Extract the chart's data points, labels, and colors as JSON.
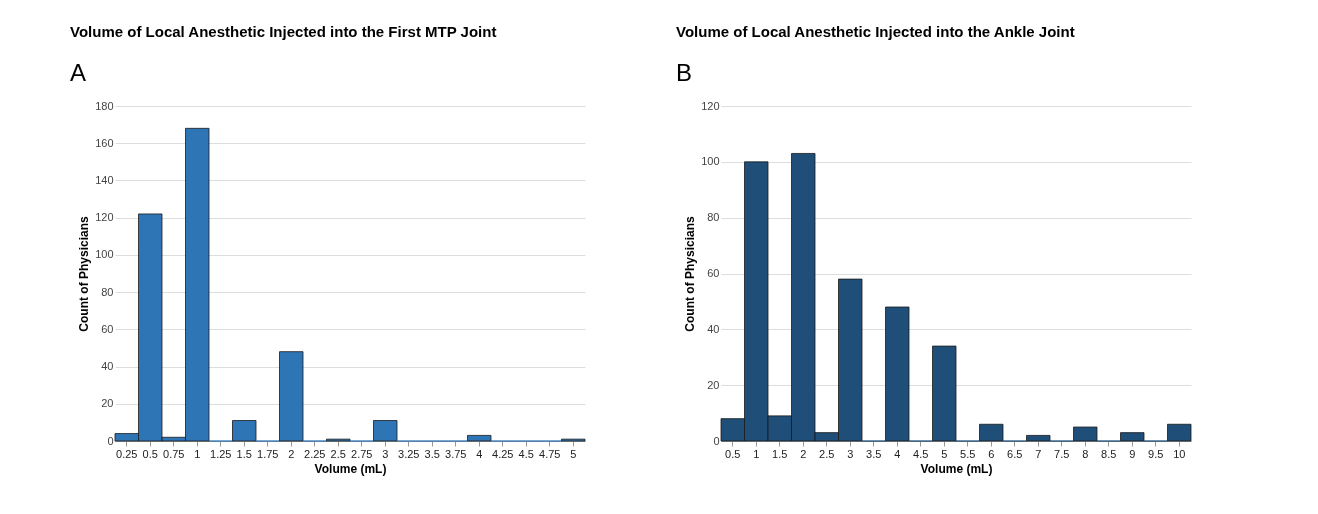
{
  "chart_data": [
    {
      "type": "bar",
      "title": "Volume of Local Anesthetic Injected into the First MTP Joint",
      "xlabel": "Volume (mL)",
      "ylabel": "Count of Physicians",
      "annotations": [
        "A"
      ],
      "categories": [
        "0.25",
        "0.5",
        "0.75",
        "1",
        "1.25",
        "1.5",
        "1.75",
        "2",
        "2.25",
        "2.5",
        "2.75",
        "3",
        "3.25",
        "3.5",
        "3.75",
        "4",
        "4.25",
        "4.5",
        "4.75",
        "5"
      ],
      "series": [
        {
          "color": "#2e75b6",
          "values": [
            4,
            122,
            2,
            168,
            0,
            11,
            0,
            48,
            0,
            1,
            0,
            11,
            0,
            0,
            0,
            3,
            0,
            0,
            0,
            1
          ]
        }
      ],
      "ylim": [
        0,
        180
      ],
      "yticks": [
        0,
        20,
        40,
        60,
        80,
        100,
        120,
        140,
        160,
        180
      ],
      "grid": "y"
    },
    {
      "type": "bar",
      "title": "Volume of Local Anesthetic Injected into the Ankle Joint",
      "xlabel": "Volume (mL)",
      "ylabel": "Count of Physicians",
      "annotations": [
        "B"
      ],
      "categories": [
        "0.5",
        "1",
        "1.5",
        "2",
        "2.5",
        "3",
        "3.5",
        "4",
        "4.5",
        "5",
        "5.5",
        "6",
        "6.5",
        "7",
        "7.5",
        "8",
        "8.5",
        "9",
        "9.5",
        "10"
      ],
      "series": [
        {
          "color": "#1f4e79",
          "values": [
            8,
            100,
            9,
            103,
            3,
            58,
            0,
            48,
            0,
            34,
            0,
            6,
            0,
            2,
            0,
            5,
            0,
            3,
            0,
            6
          ]
        }
      ],
      "ylim": [
        0,
        120
      ],
      "yticks": [
        0,
        20,
        40,
        60,
        80,
        100,
        120
      ],
      "grid": "y"
    }
  ]
}
